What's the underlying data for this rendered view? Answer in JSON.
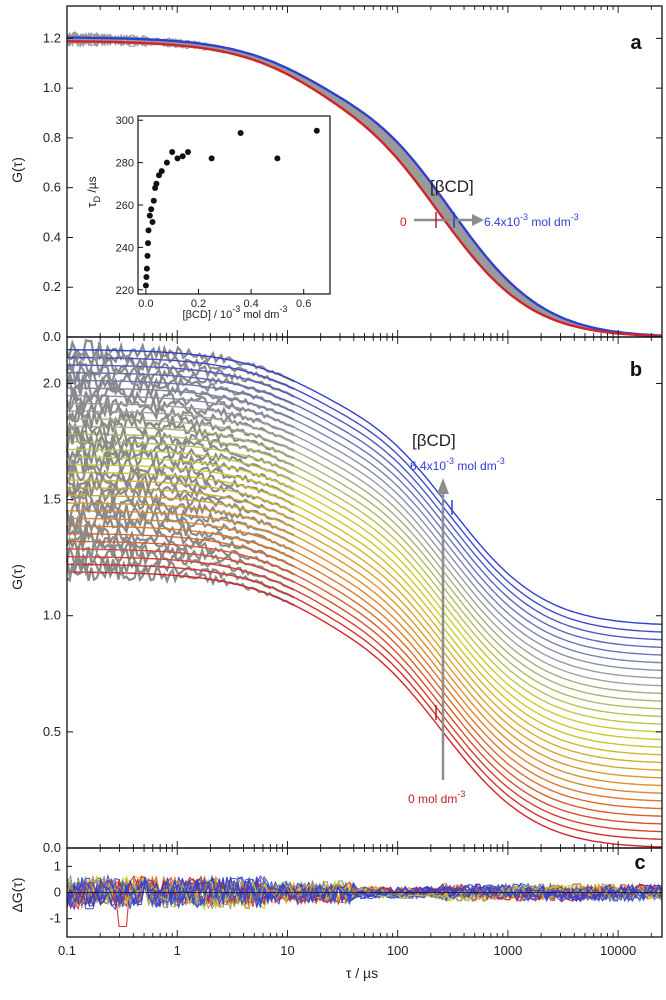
{
  "figure": {
    "xlabel": "τ / µs",
    "x_ticks": [
      "0.1",
      "1",
      "10",
      "100",
      "1000",
      "10000"
    ]
  },
  "chart_data": [
    {
      "panel": "a",
      "type": "line",
      "ylabel": "G(τ)",
      "xlim": [
        0.1,
        25000
      ],
      "xscale": "log",
      "ylim": [
        0.0,
        1.33
      ],
      "y_ticks": [
        "0.0",
        "0.2",
        "0.4",
        "0.6",
        "0.8",
        "1.0",
        "1.2"
      ],
      "y_tick_values": [
        0.0,
        0.2,
        0.4,
        0.6,
        0.8,
        1.0,
        1.2
      ],
      "curve_model": {
        "g0_first": 1.19,
        "g0_last": 1.205,
        "tau_d_first": 230,
        "tau_d_last": 300,
        "triplet_amp": 0.15,
        "triplet_tau": 12,
        "count": 21
      },
      "series_colors": {
        "first": "#d2232a",
        "middle": "#9a9a9a",
        "last": "#2f3fd2"
      },
      "annotations": {
        "beta_cd": "[βCD]",
        "start_label": "0",
        "end_label_prefix": "6.4x10",
        "end_label_exp": "-3",
        "end_label_suffix": " mol dm",
        "end_label_suffix_exp": "-3"
      },
      "inset": {
        "type": "scatter",
        "ylabel_main": "τ",
        "ylabel_sub": "D",
        "ylabel_unit": " /µs",
        "xlabel_prefix": "[βCD] / 10",
        "xlabel_exp": "-3",
        "xlabel_suffix": " mol dm",
        "xlabel_suffix_exp": "-3",
        "xlim": [
          -0.03,
          0.7
        ],
        "ylim": [
          218,
          302
        ],
        "x_ticks": [
          "0.0",
          "0.2",
          "0.4",
          "0.6"
        ],
        "x_tick_values": [
          0.0,
          0.2,
          0.4,
          0.6
        ],
        "y_ticks": [
          "220",
          "240",
          "260",
          "280",
          "300"
        ],
        "y_tick_values": [
          220,
          240,
          260,
          280,
          300
        ],
        "x": [
          0.0,
          0.002,
          0.004,
          0.006,
          0.008,
          0.01,
          0.015,
          0.02,
          0.025,
          0.03,
          0.035,
          0.04,
          0.05,
          0.06,
          0.08,
          0.1,
          0.12,
          0.14,
          0.16,
          0.25,
          0.36,
          0.5,
          0.65
        ],
        "y": [
          222,
          226,
          230,
          236,
          242,
          248,
          255,
          258,
          252,
          262,
          268,
          270,
          274,
          276,
          280,
          285,
          282,
          283,
          285,
          282,
          294,
          282,
          295
        ]
      }
    },
    {
      "panel": "b",
      "type": "line",
      "ylabel": "G(τ)",
      "xlim": [
        0.1,
        25000
      ],
      "xscale": "log",
      "ylim": [
        0.0,
        2.2
      ],
      "y_ticks": [
        "0.0",
        "0.5",
        "1.0",
        "1.5",
        "2.0"
      ],
      "y_tick_values": [
        0.0,
        0.5,
        1.0,
        1.5,
        2.0
      ],
      "curve_model": {
        "count": 30,
        "offset_step": 0.033,
        "g0": 1.19,
        "tau_d": 250,
        "triplet_amp": 0.15,
        "triplet_tau": 12
      },
      "series_gradient": [
        "#d2232a",
        "#e0882a",
        "#c8d02a",
        "#9aa0a0",
        "#2f3fd2"
      ],
      "annotations": {
        "beta_cd": "[βCD]",
        "top_label_prefix": "6.4x10",
        "top_label_exp": "-3",
        "top_label_suffix": " mol dm",
        "top_label_suffix_exp": "-3",
        "bottom_label": "0 mol dm",
        "bottom_label_exp": "-3"
      }
    },
    {
      "panel": "c",
      "type": "line",
      "ylabel": "ΔG(τ)",
      "xlim": [
        0.1,
        25000
      ],
      "xscale": "log",
      "ylim": [
        -1.7,
        1.7
      ],
      "y_ticks": [
        "-1",
        "0",
        "1"
      ],
      "y_tick_values": [
        -1,
        0,
        1
      ],
      "residual_colors": [
        "#d2232a",
        "#e0882a",
        "#c8d02a",
        "#8a8a8a",
        "#2f3fd2",
        "#2f3fd2",
        "#3344dd"
      ]
    }
  ]
}
